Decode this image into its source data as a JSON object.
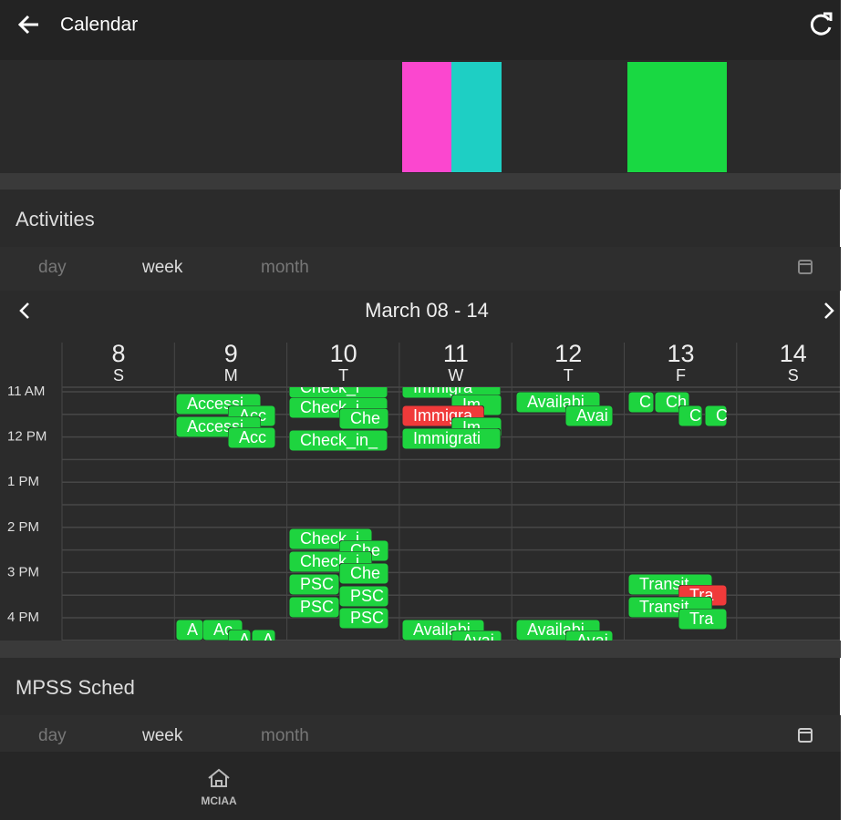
{
  "header": {
    "title": "Calendar"
  },
  "activities": {
    "title": "Activities",
    "tabs": [
      "day",
      "week",
      "month"
    ],
    "range": "March 08 - 14",
    "days": [
      {
        "num": "8",
        "letter": "S"
      },
      {
        "num": "9",
        "letter": "M"
      },
      {
        "num": "10",
        "letter": "T"
      },
      {
        "num": "11",
        "letter": "W"
      },
      {
        "num": "12",
        "letter": "T"
      },
      {
        "num": "13",
        "letter": "F"
      },
      {
        "num": "14",
        "letter": "S"
      }
    ],
    "hours": [
      "11 AM",
      "12 PM",
      "1 PM",
      "2 PM",
      "3 PM",
      "4 PM"
    ],
    "events": [
      {
        "label": "Accessi",
        "color": "#1ed43f"
      },
      {
        "label": "Acc",
        "color": "#1ed43f"
      },
      {
        "label": "Accessi",
        "color": "#1ed43f"
      },
      {
        "label": "Acc",
        "color": "#1ed43f"
      },
      {
        "label": "A",
        "color": "#1ed43f"
      },
      {
        "label": "Ac",
        "color": "#1ed43f"
      },
      {
        "label": "A",
        "color": "#1ed43f"
      },
      {
        "label": "A",
        "color": "#1ed43f"
      },
      {
        "label": "Check_i",
        "color": "#1ed43f"
      },
      {
        "label": "Check_i",
        "color": "#1ed43f"
      },
      {
        "label": "Che",
        "color": "#1ed43f"
      },
      {
        "label": "Check_in_",
        "color": "#1ed43f"
      },
      {
        "label": "Check_i",
        "color": "#1ed43f"
      },
      {
        "label": "Che",
        "color": "#1ed43f"
      },
      {
        "label": "Check_i",
        "color": "#1ed43f"
      },
      {
        "label": "Che",
        "color": "#1ed43f"
      },
      {
        "label": "PSC",
        "color": "#1ed43f"
      },
      {
        "label": "PSC",
        "color": "#1ed43f"
      },
      {
        "label": "PSC",
        "color": "#1ed43f"
      },
      {
        "label": "PSC",
        "color": "#1ed43f"
      },
      {
        "label": "Immigra",
        "color": "#1ed43f"
      },
      {
        "label": "Im",
        "color": "#1ed43f"
      },
      {
        "label": "Immigra",
        "color": "#f03a3a"
      },
      {
        "label": "Im",
        "color": "#1ed43f"
      },
      {
        "label": "Immigrati",
        "color": "#1ed43f"
      },
      {
        "label": "Availabi",
        "color": "#1ed43f"
      },
      {
        "label": "Avai",
        "color": "#1ed43f"
      },
      {
        "label": "Availabi",
        "color": "#1ed43f"
      },
      {
        "label": "Avai",
        "color": "#1ed43f"
      },
      {
        "label": "Availabi",
        "color": "#1ed43f"
      },
      {
        "label": "Avai",
        "color": "#1ed43f"
      },
      {
        "label": "C",
        "color": "#1ed43f"
      },
      {
        "label": "Ch",
        "color": "#1ed43f"
      },
      {
        "label": "C",
        "color": "#1ed43f"
      },
      {
        "label": "C",
        "color": "#1ed43f"
      },
      {
        "label": "Transit",
        "color": "#1ed43f"
      },
      {
        "label": "Tra",
        "color": "#f03a3a"
      },
      {
        "label": "Transit",
        "color": "#1ed43f"
      },
      {
        "label": "Tra",
        "color": "#1ed43f"
      }
    ]
  },
  "mpss": {
    "title": "MPSS Sched",
    "tabs": [
      "day",
      "week",
      "month"
    ]
  },
  "nav": {
    "label": "MCIAA"
  }
}
